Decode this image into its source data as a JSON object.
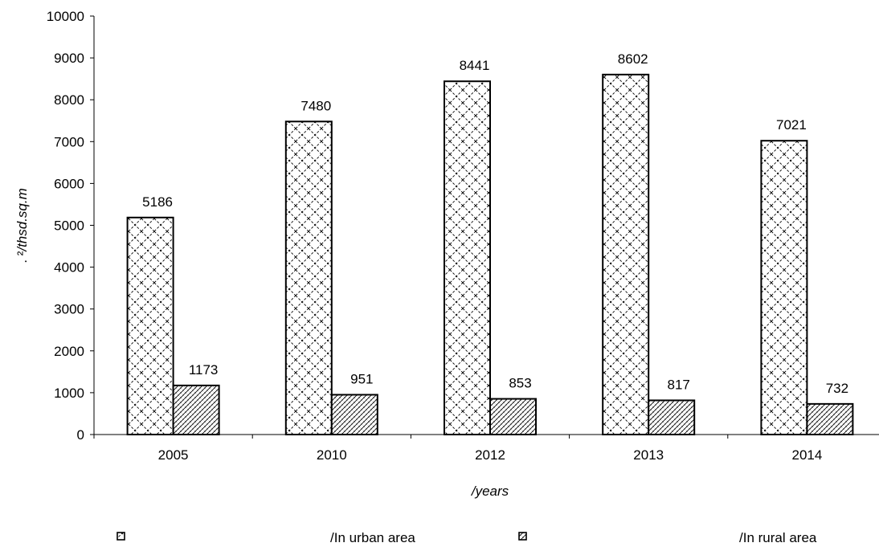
{
  "chart_data": {
    "type": "bar",
    "categories": [
      "2005",
      "2010",
      "2012",
      "2013",
      "2014"
    ],
    "series": [
      {
        "name": "/In urban area",
        "values": [
          5186,
          7480,
          8441,
          8602,
          7021
        ],
        "pattern": "cross-hatch-wide"
      },
      {
        "name": "/In rural area",
        "values": [
          1173,
          951,
          853,
          817,
          732
        ],
        "pattern": "cross-hatch-dense"
      }
    ],
    "yticks": [
      "0",
      "1000",
      "2000",
      "3000",
      "4000",
      "5000",
      "6000",
      "7000",
      "8000",
      "9000",
      "10000"
    ],
    "ylim": [
      0,
      10000
    ],
    "xlabel": "/years",
    "ylabel_prefix": ". ²",
    "ylabel": "/thsd.sq.m",
    "legend_position": "bottom",
    "grid": false,
    "bar_fill_color": "#ffffff",
    "bar_stroke_color": "#000000"
  }
}
